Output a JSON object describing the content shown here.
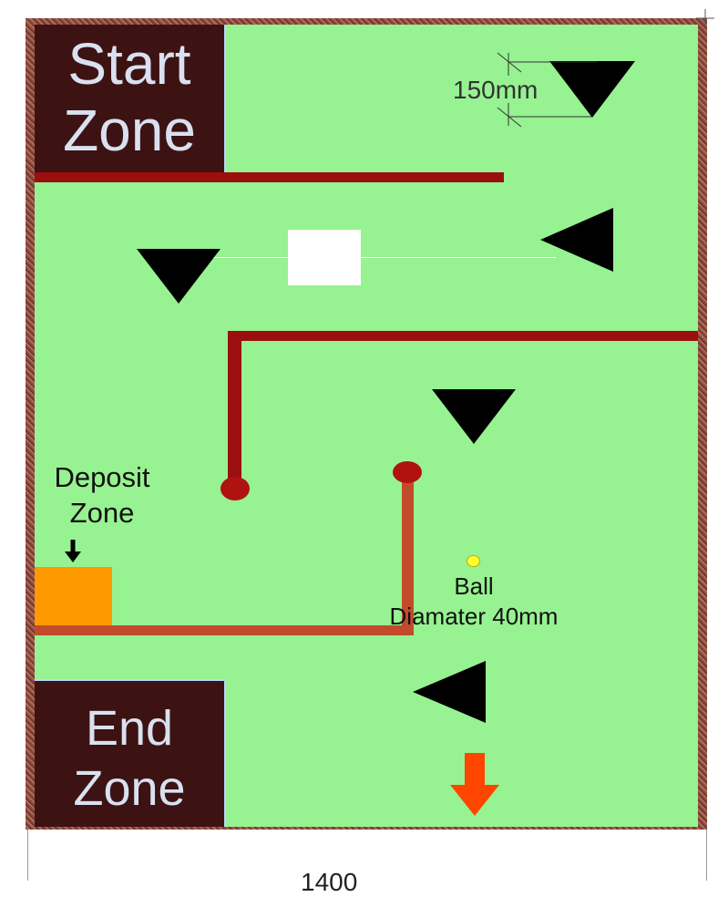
{
  "zones": {
    "start": {
      "line1": "Start",
      "line2": "Zone"
    },
    "end": {
      "line1": "End",
      "line2": "Zone"
    },
    "deposit": {
      "line1": "Deposit",
      "line2": "Zone"
    }
  },
  "labels": {
    "measure": "150mm",
    "ball_line1": "Ball",
    "ball_line2": "Diamater 40mm",
    "bottom_partial": "1400"
  },
  "colors": {
    "field": "#97f291",
    "zone_block": "#3d1213",
    "wall": "#9c0f0f",
    "rail": "#c24b2b",
    "deposit": "#ff9900",
    "exit_arrow": "#ff4500",
    "ball": "#ffff33"
  },
  "markers": {
    "down_triangles": 3,
    "left_triangles": 2
  }
}
